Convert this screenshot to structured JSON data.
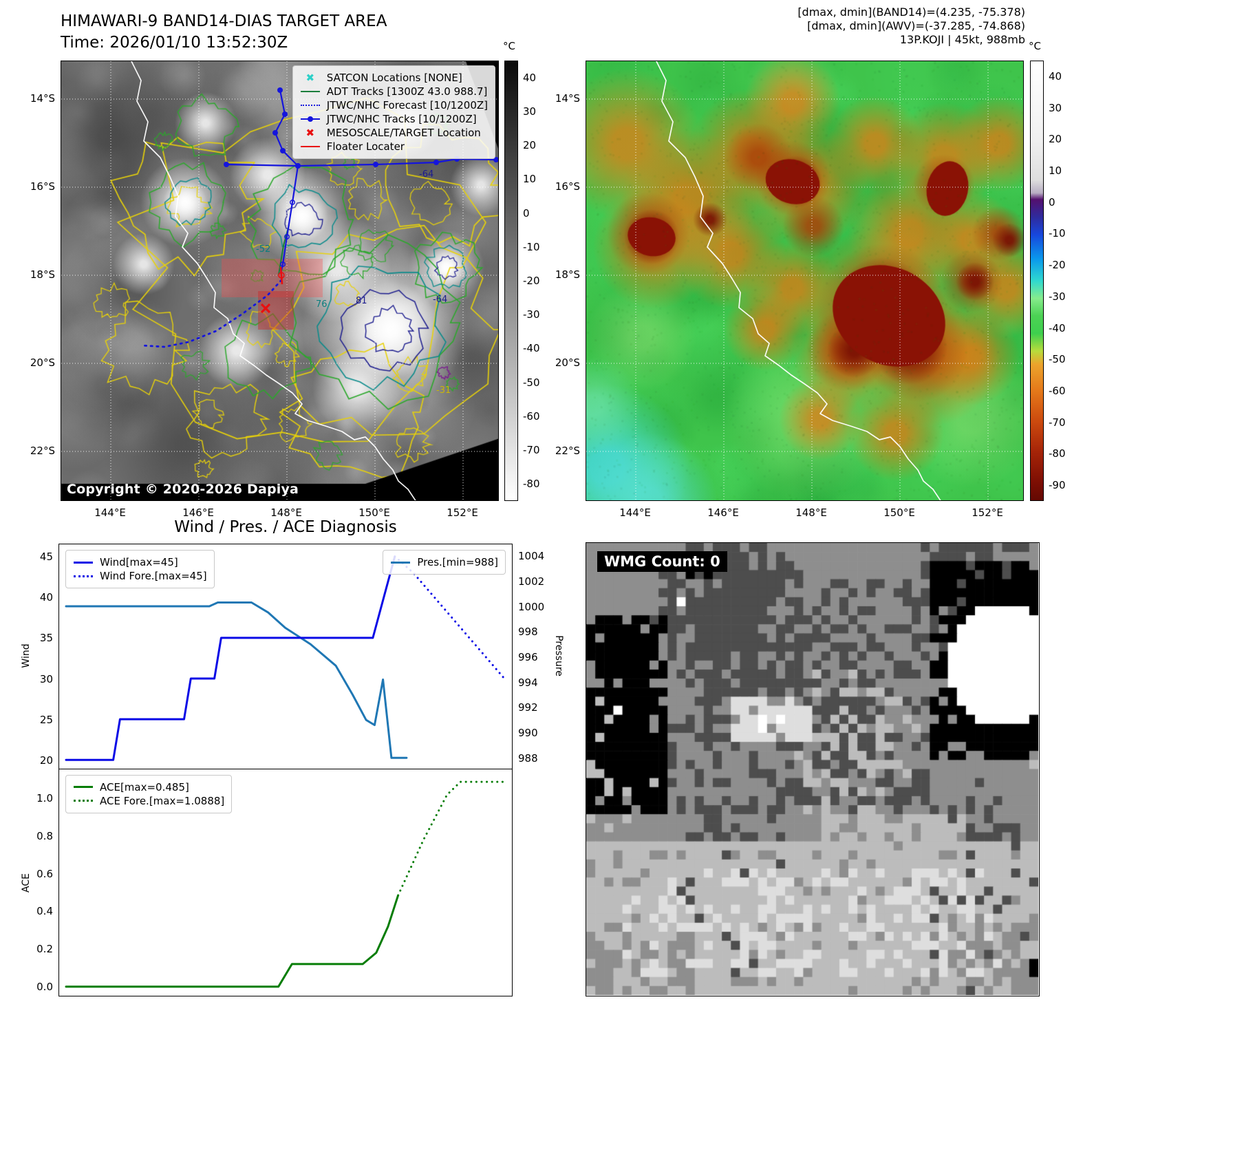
{
  "header_right": {
    "lines": [
      "[dmax, dmin](BAND14)=(4.235, -75.378)",
      "[dmax, dmin](AWV)=(-37.285, -74.868)",
      "13P.KOJI | 45kt, 988mb"
    ]
  },
  "top_left": {
    "title": "HIMAWARI-9 BAND14-DIAS TARGET AREA",
    "subtitle": "Time: 2026/01/10 13:52:30Z",
    "copyright": "Copyright © 2020-2026 Dapiya",
    "x_ticks": [
      "144°E",
      "146°E",
      "148°E",
      "150°E",
      "152°E"
    ],
    "y_ticks": [
      "14°S",
      "16°S",
      "18°S",
      "20°S",
      "22°S"
    ],
    "colorbar": {
      "unit": "°C",
      "ticks": [
        "40",
        "30",
        "20",
        "10",
        "0",
        "-10",
        "-20",
        "-30",
        "-40",
        "-50",
        "-60",
        "-70",
        "-80"
      ]
    },
    "legend": [
      {
        "label": "SATCON Locations [NONE]",
        "marker": "x",
        "color": "#2dd0c8"
      },
      {
        "label": "ADT Tracks [1300Z 43.0 988.7]",
        "marker": "line",
        "color": "#1b7e3c"
      },
      {
        "label": "JTWC/NHC Forecast [10/1200Z]",
        "marker": "dotted",
        "color": "#1515dd"
      },
      {
        "label": "JTWC/NHC Tracks [10/1200Z]",
        "marker": "line-dot",
        "color": "#1515dd"
      },
      {
        "label": "MESOSCALE/TARGET Location",
        "marker": "x",
        "color": "#e81010"
      },
      {
        "label": "Floater Locater",
        "marker": "line",
        "color": "#e81010"
      }
    ],
    "contour_labels": [
      {
        "text": "-64",
        "color": "#1c1c8e"
      },
      {
        "text": "81",
        "color": "#1c1c8e"
      },
      {
        "text": "76",
        "color": "#0b7d7d"
      },
      {
        "text": "-31",
        "color": "#c9b50a"
      },
      {
        "text": "-64",
        "color": "#1c1c8e"
      },
      {
        "text": "-52",
        "color": "#0b7d7d"
      }
    ]
  },
  "top_right": {
    "x_ticks": [
      "144°E",
      "146°E",
      "148°E",
      "150°E",
      "152°E"
    ],
    "y_ticks": [
      "14°S",
      "16°S",
      "18°S",
      "20°S",
      "22°S"
    ],
    "colorbar": {
      "unit": "°C",
      "ticks": [
        "40",
        "30",
        "20",
        "10",
        "0",
        "-10",
        "-20",
        "-30",
        "-40",
        "-50",
        "-60",
        "-70",
        "-80",
        "-90"
      ]
    }
  },
  "bottom_left": {
    "title": "Wind / Pres. / ACE Diagnosis",
    "wind_axis_label": "Wind",
    "pressure_axis_label": "Pressure",
    "ace_axis_label": "ACE"
  },
  "bottom_right": {
    "wmg_label": "WMG Count: 0"
  },
  "chart_data": [
    {
      "type": "line",
      "panel": "wind-pressure",
      "title": "Wind / Pres. / ACE Diagnosis",
      "xlim": [
        0,
        26
      ],
      "ylabel_left": "Wind",
      "ylim_left": [
        19,
        46.5
      ],
      "yticks_left": [
        20,
        25,
        30,
        35,
        40,
        45
      ],
      "ylabel_right": "Pressure",
      "ylim_right": [
        987.2,
        1004.9
      ],
      "yticks_right": [
        988,
        990,
        992,
        994,
        996,
        998,
        1000,
        1002,
        1004
      ],
      "legend_position": {
        "wind": "upper left",
        "pres": "upper right"
      },
      "series": [
        {
          "name": "Wind[max=45]",
          "color": "#0a0ae6",
          "style": "solid",
          "axis": "left",
          "points": [
            [
              0,
              20
            ],
            [
              2.8,
              20
            ],
            [
              3.2,
              25
            ],
            [
              7,
              25
            ],
            [
              7.4,
              30
            ],
            [
              8.8,
              30
            ],
            [
              9.2,
              35
            ],
            [
              18.2,
              35
            ],
            [
              19.5,
              45
            ]
          ]
        },
        {
          "name": "Wind Fore.[max=45]",
          "color": "#0a0ae6",
          "style": "dotted",
          "axis": "left",
          "points": [
            [
              19.5,
              45
            ],
            [
              20.6,
              43
            ],
            [
              26,
              30
            ]
          ]
        },
        {
          "name": "Pres.[min=988]",
          "color": "#1f77b4",
          "style": "solid",
          "axis": "right",
          "points": [
            [
              0,
              1000
            ],
            [
              8.5,
              1000
            ],
            [
              9,
              1000.3
            ],
            [
              11,
              1000.3
            ],
            [
              12,
              999.5
            ],
            [
              13,
              998.3
            ],
            [
              14.5,
              997
            ],
            [
              16,
              995.3
            ],
            [
              17,
              993
            ],
            [
              17.8,
              991
            ],
            [
              18.3,
              990.6
            ],
            [
              18.8,
              994.2
            ],
            [
              19.3,
              988
            ],
            [
              20.2,
              988
            ]
          ]
        }
      ]
    },
    {
      "type": "line",
      "panel": "ace",
      "xlim": [
        0,
        26
      ],
      "ylabel": "ACE",
      "ylim": [
        -0.045,
        1.155
      ],
      "yticks": [
        0,
        0.2,
        0.4,
        0.6,
        0.8,
        1.0
      ],
      "series": [
        {
          "name": "ACE[max=0.485]",
          "color": "#067d06",
          "style": "solid",
          "points": [
            [
              0,
              0
            ],
            [
              12.6,
              0
            ],
            [
              13.4,
              0.12
            ],
            [
              17.6,
              0.12
            ],
            [
              18.4,
              0.18
            ],
            [
              19.1,
              0.32
            ],
            [
              19.7,
              0.485
            ]
          ]
        },
        {
          "name": "ACE Fore.[max=1.0888]",
          "color": "#067d06",
          "style": "dotted",
          "points": [
            [
              19.7,
              0.485
            ],
            [
              21.2,
              0.78
            ],
            [
              22.6,
              1.02
            ],
            [
              23.4,
              1.0888
            ],
            [
              26,
              1.0888
            ]
          ]
        }
      ]
    },
    {
      "type": "heatmap",
      "panel": "band14-ir-satellite",
      "title": "HIMAWARI-9 BAND14-DIAS TARGET AREA",
      "colorbar_unit": "°C",
      "colorbar_range": [
        40,
        -80
      ],
      "value_range": {
        "dmax": 4.235,
        "dmin": -75.378
      },
      "x_ticks": [
        "144°E",
        "146°E",
        "148°E",
        "150°E",
        "152°E"
      ],
      "y_ticks": [
        "14°S",
        "16°S",
        "18°S",
        "20°S",
        "22°S"
      ]
    },
    {
      "type": "heatmap",
      "panel": "awv-satellite",
      "colorbar_unit": "°C",
      "colorbar_range": [
        40,
        -90
      ],
      "value_range": {
        "dmax": -37.285,
        "dmin": -74.868
      },
      "x_ticks": [
        "144°E",
        "146°E",
        "148°E",
        "150°E",
        "152°E"
      ],
      "y_ticks": [
        "14°S",
        "16°S",
        "18°S",
        "20°S",
        "22°S"
      ]
    }
  ]
}
